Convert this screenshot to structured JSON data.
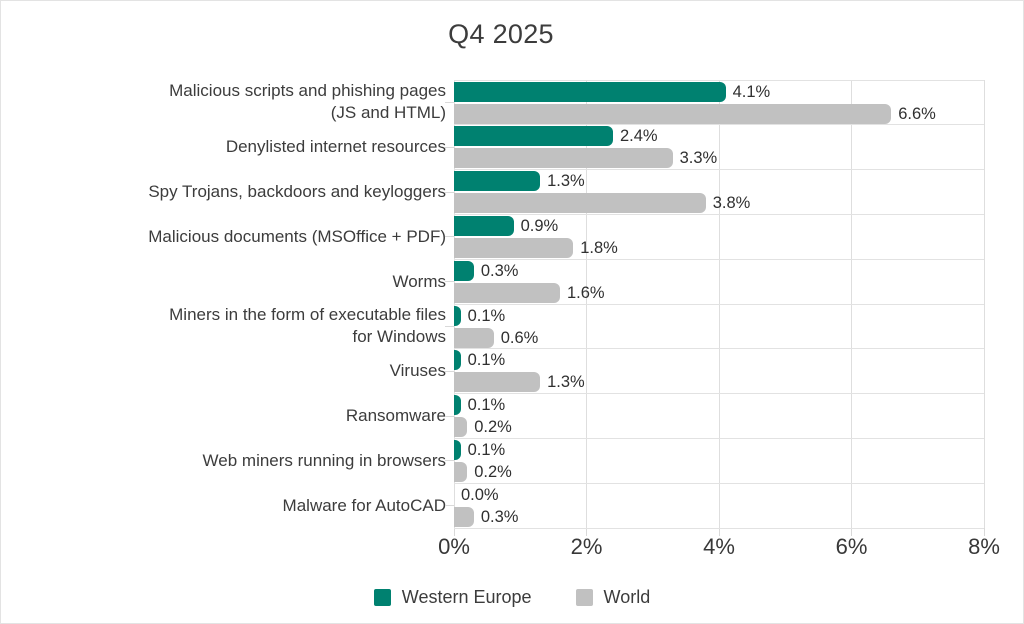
{
  "title": "Q4 2025",
  "colors": {
    "western_europe": "#008170",
    "world": "#c1c1c1",
    "grid": "#dedede",
    "text": "#3c3c3c"
  },
  "x_axis": {
    "tick_labels": [
      "0%",
      "2%",
      "4%",
      "6%",
      "8%"
    ],
    "min": 0,
    "max": 8
  },
  "legend": {
    "position": "bottom",
    "items": [
      "Western Europe",
      "World"
    ]
  },
  "chart_data": {
    "type": "bar",
    "orientation": "horizontal",
    "title": "Q4 2025",
    "categories": [
      "Malicious scripts and phishing pages (JS and HTML)",
      "Denylisted internet resources",
      "Spy Trojans, backdoors and keyloggers",
      "Malicious documents (MSOffice + PDF)",
      "Worms",
      "Miners in the form of executable files for Windows",
      "Viruses",
      "Ransomware",
      "Web miners running in browsers",
      "Malware for AutoCAD"
    ],
    "category_lines": [
      [
        "Malicious scripts and phishing pages",
        "(JS and HTML)"
      ],
      [
        "Denylisted internet resources"
      ],
      [
        "Spy Trojans, backdoors and keyloggers"
      ],
      [
        "Malicious documents (MSOffice + PDF)"
      ],
      [
        "Worms"
      ],
      [
        "Miners in the form of executable files",
        "for Windows"
      ],
      [
        "Viruses"
      ],
      [
        "Ransomware"
      ],
      [
        "Web miners running in browsers"
      ],
      [
        "Malware for AutoCAD"
      ]
    ],
    "series": [
      {
        "name": "Western Europe",
        "color": "#008170",
        "values": [
          4.1,
          2.4,
          1.3,
          0.9,
          0.3,
          0.1,
          0.1,
          0.1,
          0.1,
          0.0
        ],
        "labels": [
          "4.1%",
          "2.4%",
          "1.3%",
          "0.9%",
          "0.3%",
          "0.1%",
          "0.1%",
          "0.1%",
          "0.1%",
          "0.0%"
        ]
      },
      {
        "name": "World",
        "color": "#c1c1c1",
        "values": [
          6.6,
          3.3,
          3.8,
          1.8,
          1.6,
          0.6,
          1.3,
          0.2,
          0.2,
          0.3
        ],
        "labels": [
          "6.6%",
          "3.3%",
          "3.8%",
          "1.8%",
          "1.6%",
          "0.6%",
          "1.3%",
          "0.2%",
          "0.2%",
          "0.3%"
        ]
      }
    ],
    "xlim": [
      0,
      8
    ],
    "x_tick_labels": [
      "0%",
      "2%",
      "4%",
      "6%",
      "8%"
    ],
    "grid": true,
    "legend_position": "bottom"
  }
}
